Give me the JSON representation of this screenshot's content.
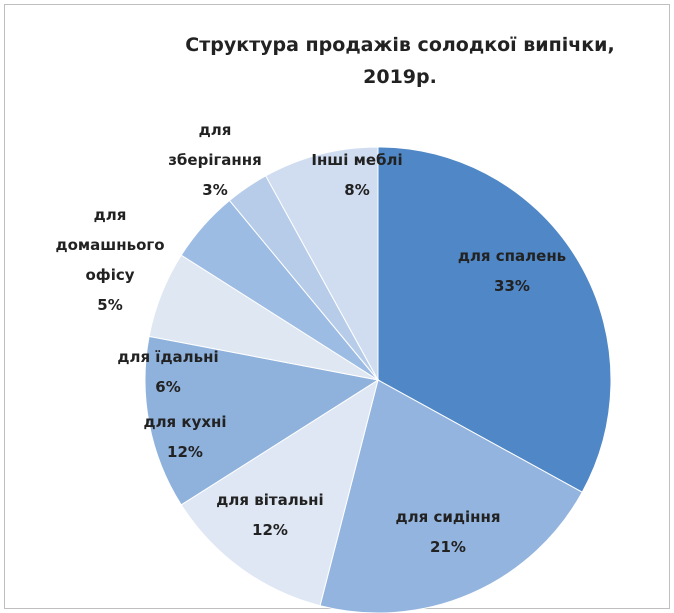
{
  "chart_data": {
    "type": "pie",
    "title": "Структура продажів солодкої випічки,\n2019р.",
    "categories": [
      "для спалень",
      "для сидіння",
      "для вітальні",
      "для кухні",
      "для їдальні",
      "для\nдомашнього\nофісу",
      "для\nзберігання",
      "Інші меблі"
    ],
    "values": [
      33,
      21,
      12,
      12,
      6,
      5,
      3,
      8
    ],
    "value_labels": [
      "33%",
      "21%",
      "12%",
      "12%",
      "6%",
      "5%",
      "3%",
      "8%"
    ],
    "colors": [
      "#4f87c7",
      "#93b4de",
      "#dee7f3",
      "#8fb2dd",
      "#dfe7f2",
      "#9dbce4",
      "#b7cce9",
      "#d0ddf0"
    ]
  }
}
